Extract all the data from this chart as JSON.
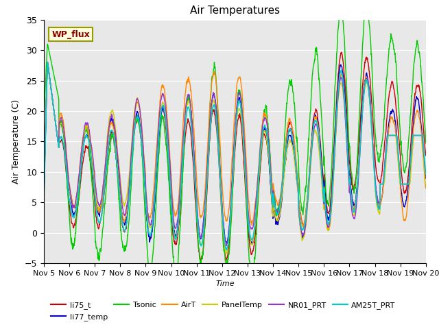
{
  "title": "Air Temperatures",
  "ylabel": "Air Temperature (C)",
  "xlabel": "Time",
  "ylim": [
    -5,
    35
  ],
  "series_names": [
    "li75_t",
    "li77_temp",
    "Tsonic",
    "AirT",
    "PanelTemp",
    "NR01_PRT",
    "AM25T_PRT"
  ],
  "series_colors": [
    "#cc0000",
    "#0000cc",
    "#00cc00",
    "#ff8800",
    "#cccc00",
    "#9933cc",
    "#00cccc"
  ],
  "x_tick_labels": [
    "Nov 5",
    "Nov 6",
    "Nov 7",
    "Nov 8",
    "Nov 9",
    "Nov 10",
    "Nov 11",
    "Nov 12",
    "Nov 13",
    "Nov 14",
    "Nov 15",
    "Nov 16",
    "Nov 17",
    "Nov 18",
    "Nov 19",
    "Nov 20"
  ],
  "annotation_text": "WP_flux",
  "bg_color": "#e8e8e8",
  "fig_bg_color": "#ffffff",
  "day_mins": [
    3,
    4,
    3,
    2,
    0,
    -1,
    -2,
    -2,
    -1,
    3,
    0,
    1,
    3,
    4,
    3
  ],
  "day_maxs": [
    18,
    17,
    18,
    20,
    21,
    21,
    22,
    22,
    18,
    17,
    18,
    26,
    25,
    20,
    20
  ],
  "tsonic_extra": [
    5,
    4,
    4,
    3,
    4,
    4,
    5,
    4,
    4,
    4,
    7,
    5,
    5,
    4,
    4
  ],
  "n_days": 15,
  "n_pts": 1440
}
